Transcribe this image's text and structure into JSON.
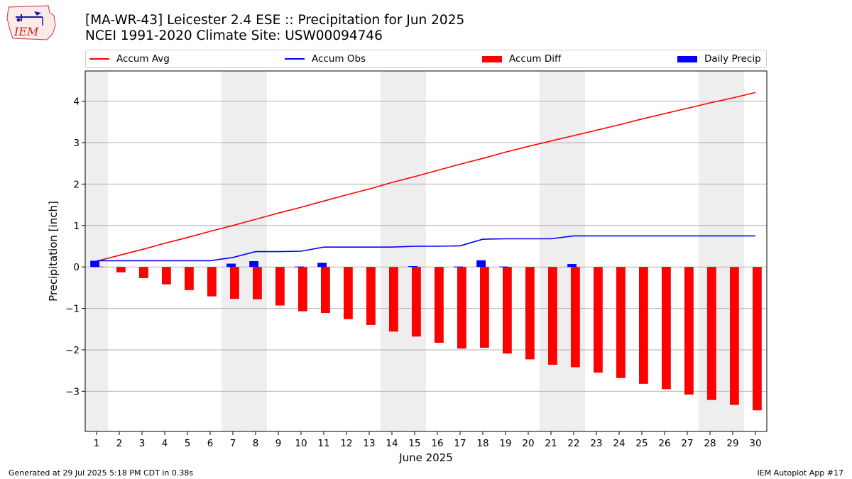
{
  "header": {
    "title_line1": "[MA-WR-43] Leicester 2.4 ESE :: Precipitation for Jun 2025",
    "title_line2": "NCEI 1991-2020 Climate Site: USW00094746",
    "logo_text": "IEM"
  },
  "legend": {
    "accum_avg": "Accum Avg",
    "accum_obs": "Accum Obs",
    "accum_diff": "Accum Diff",
    "daily_precip": "Daily Precip"
  },
  "footer": {
    "generated": "Generated at 29 Jul 2025 5:18 PM CDT in 0.38s",
    "app": "IEM Autoplot App #17"
  },
  "colors": {
    "avg": "#ff0000",
    "obs": "#0000ff",
    "diff": "#ff0000",
    "daily": "#0000ff",
    "weekend_shade": "#eeeeee",
    "grid": "#b0b0b0"
  },
  "chart_data": {
    "type": "bar",
    "xlabel": "June 2025",
    "ylabel": "Precipitation [inch]",
    "ylim": [
      -3.97,
      4.73
    ],
    "yticks": [
      -3,
      -2,
      -1,
      0,
      1,
      2,
      3,
      4
    ],
    "ytick_labels": [
      "−3",
      "−2",
      "−1",
      "0",
      "1",
      "2",
      "3",
      "4"
    ],
    "grid": "horizontal",
    "legend_position": "top",
    "x": [
      1,
      2,
      3,
      4,
      5,
      6,
      7,
      8,
      9,
      10,
      11,
      12,
      13,
      14,
      15,
      16,
      17,
      18,
      19,
      20,
      21,
      22,
      23,
      24,
      25,
      26,
      27,
      28,
      29,
      30
    ],
    "weekend_shading": [
      [
        0.5,
        1.5
      ],
      [
        6.5,
        8.5
      ],
      [
        13.5,
        15.5
      ],
      [
        20.5,
        22.5
      ],
      [
        27.5,
        29.5
      ]
    ],
    "series": [
      {
        "name": "Accum Avg",
        "kind": "line",
        "values": [
          0.14,
          0.28,
          0.42,
          0.57,
          0.71,
          0.86,
          1.0,
          1.15,
          1.3,
          1.44,
          1.59,
          1.74,
          1.88,
          2.04,
          2.18,
          2.33,
          2.48,
          2.62,
          2.77,
          2.91,
          3.04,
          3.17,
          3.3,
          3.43,
          3.57,
          3.7,
          3.83,
          3.96,
          4.08,
          4.21
        ]
      },
      {
        "name": "Accum Obs",
        "kind": "line",
        "values": [
          0.15,
          0.15,
          0.15,
          0.15,
          0.15,
          0.15,
          0.23,
          0.37,
          0.37,
          0.38,
          0.48,
          0.48,
          0.48,
          0.48,
          0.5,
          0.5,
          0.51,
          0.67,
          0.68,
          0.68,
          0.68,
          0.75,
          0.75,
          0.75,
          0.75,
          0.75,
          0.75,
          0.75,
          0.75,
          0.75
        ]
      },
      {
        "name": "Accum Diff",
        "kind": "bar",
        "values": [
          0.01,
          -0.13,
          -0.27,
          -0.42,
          -0.56,
          -0.71,
          -0.77,
          -0.78,
          -0.93,
          -1.07,
          -1.11,
          -1.26,
          -1.4,
          -1.56,
          -1.68,
          -1.83,
          -1.97,
          -1.95,
          -2.09,
          -2.23,
          -2.36,
          -2.42,
          -2.55,
          -2.68,
          -2.82,
          -2.95,
          -3.08,
          -3.21,
          -3.33,
          -3.46
        ]
      },
      {
        "name": "Daily Precip",
        "kind": "bar",
        "values": [
          0.15,
          0.0,
          0.0,
          0.0,
          0.0,
          0.0,
          0.08,
          0.14,
          0.0,
          0.01,
          0.1,
          0.0,
          0.0,
          0.0,
          0.02,
          0.0,
          0.01,
          0.16,
          0.01,
          0.0,
          0.0,
          0.07,
          0.0,
          0.0,
          0.0,
          0.0,
          0.0,
          0.0,
          0.0,
          0.0
        ]
      }
    ]
  }
}
